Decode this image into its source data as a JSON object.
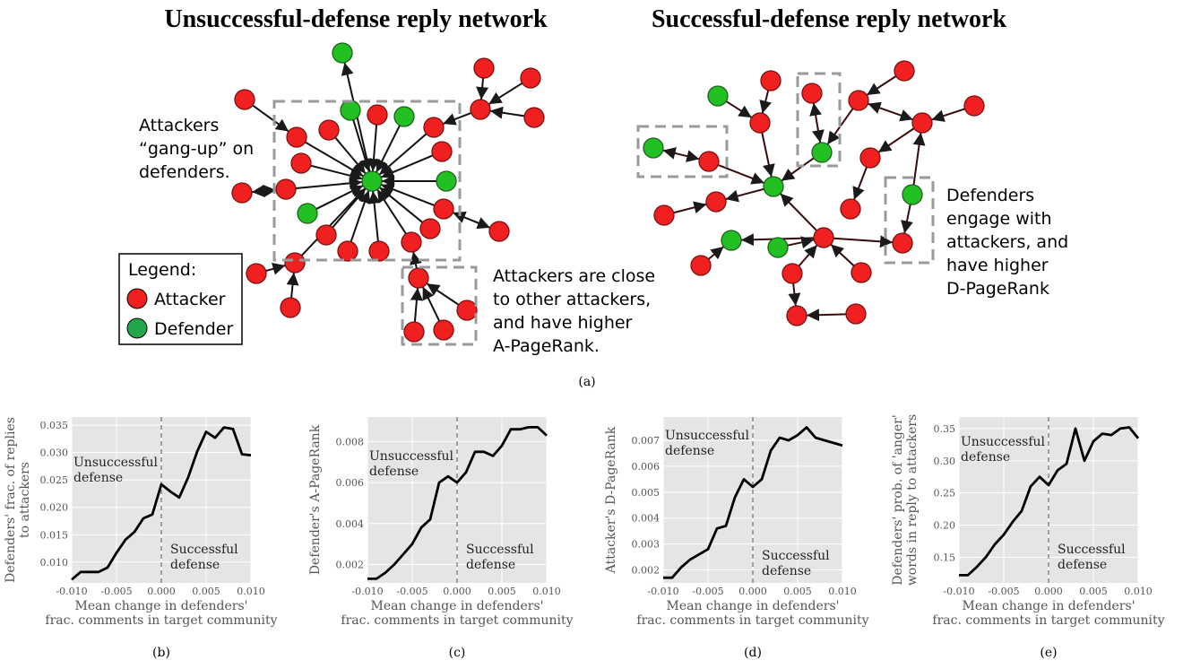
{
  "figure": {
    "left_title": "Unsuccessful-defense reply network",
    "right_title": "Successful-defense reply network",
    "note_gang": [
      "Attackers",
      "“gang-up” on",
      "defenders."
    ],
    "note_close": [
      "Attackers are close",
      "to other attackers,",
      "and have higher",
      "A-PageRank."
    ],
    "note_engage": [
      "Defenders",
      "engage with",
      "attackers, and",
      "have higher",
      "D-PageRank"
    ],
    "legend": {
      "title": "Legend:",
      "attacker": "Attacker",
      "defender": "Defender"
    },
    "colors": {
      "attacker": "#f02020",
      "defender": "#22c022",
      "edge": "#000000"
    },
    "caption_a": "(a)",
    "captions": [
      "(b)",
      "(c)",
      "(d)",
      "(e)"
    ]
  },
  "chart_data": [
    {
      "type": "line",
      "xlabel": [
        "Mean change in defenders'",
        "frac. comments in target community"
      ],
      "ylabel": [
        "Defenders' frac. of replies",
        "to attackers"
      ],
      "xlim": [
        -0.01,
        0.01
      ],
      "ylim": [
        0.0062,
        0.0365
      ],
      "xticks": [
        "-0.010",
        "-0.005",
        "0.000",
        "0.005",
        "0.010"
      ],
      "yticks": [
        "0.010",
        "0.015",
        "0.020",
        "0.025",
        "0.030",
        "0.035"
      ],
      "annotation_left": [
        "Unsuccessful",
        "defense"
      ],
      "annotation_right": [
        "Successful",
        "defense"
      ],
      "x": [
        -0.01,
        -0.009,
        -0.008,
        -0.007,
        -0.006,
        -0.005,
        -0.004,
        -0.003,
        -0.002,
        -0.001,
        0.0,
        0.001,
        0.002,
        0.003,
        0.004,
        0.005,
        0.006,
        0.007,
        0.008,
        0.009,
        0.01
      ],
      "values": [
        0.0068,
        0.0082,
        0.0082,
        0.0082,
        0.009,
        0.0117,
        0.0141,
        0.0155,
        0.018,
        0.0187,
        0.0242,
        0.0229,
        0.0218,
        0.0255,
        0.0302,
        0.0338,
        0.0327,
        0.0346,
        0.0343,
        0.0297,
        0.0295
      ]
    },
    {
      "type": "line",
      "xlabel": [
        "Mean change in defenders'",
        "frac. comments in target community"
      ],
      "ylabel": [
        "Defender's A-PageRank"
      ],
      "xlim": [
        -0.01,
        0.01
      ],
      "ylim": [
        0.0011,
        0.0092
      ],
      "xticks": [
        "-0.010",
        "-0.005",
        "0.000",
        "0.005",
        "0.010"
      ],
      "yticks": [
        "0.002",
        "0.004",
        "0.006",
        "0.008"
      ],
      "annotation_left": [
        "Unsuccessful",
        "defense"
      ],
      "annotation_right": [
        "Successful",
        "defense"
      ],
      "x": [
        -0.01,
        -0.009,
        -0.008,
        -0.007,
        -0.006,
        -0.005,
        -0.004,
        -0.003,
        -0.002,
        -0.001,
        0.0,
        0.001,
        0.002,
        0.003,
        0.004,
        0.005,
        0.006,
        0.007,
        0.008,
        0.009,
        0.01
      ],
      "values": [
        0.0013,
        0.0013,
        0.0016,
        0.002,
        0.0025,
        0.003,
        0.0038,
        0.0042,
        0.006,
        0.0063,
        0.006,
        0.0065,
        0.0075,
        0.0075,
        0.0073,
        0.0078,
        0.0086,
        0.0086,
        0.0087,
        0.0087,
        0.0083
      ]
    },
    {
      "type": "line",
      "xlabel": [
        "Mean change in defenders'",
        "frac. comments in target community"
      ],
      "ylabel": [
        "Attacker's D-PageRank"
      ],
      "xlim": [
        -0.01,
        0.01
      ],
      "ylim": [
        0.0015,
        0.0079
      ],
      "xticks": [
        "-0.010",
        "-0.005",
        "0.000",
        "0.005",
        "0.010"
      ],
      "yticks": [
        "0.002",
        "0.003",
        "0.004",
        "0.005",
        "0.006",
        "0.007"
      ],
      "annotation_left": [
        "Unsuccessful",
        "defense"
      ],
      "annotation_right": [
        "Successful",
        "defense"
      ],
      "x": [
        -0.01,
        -0.009,
        -0.008,
        -0.007,
        -0.006,
        -0.005,
        -0.004,
        -0.003,
        -0.002,
        -0.001,
        0.0,
        0.001,
        0.002,
        0.003,
        0.004,
        0.005,
        0.006,
        0.007,
        0.008,
        0.009,
        0.01
      ],
      "values": [
        0.0017,
        0.0017,
        0.0021,
        0.0024,
        0.0026,
        0.0028,
        0.0036,
        0.0037,
        0.0048,
        0.0055,
        0.0052,
        0.0055,
        0.0066,
        0.0071,
        0.007,
        0.0072,
        0.0075,
        0.0071,
        0.007,
        0.0069,
        0.0068
      ]
    },
    {
      "type": "line",
      "xlabel": [
        "Mean change in defenders'",
        "frac. comments in target community"
      ],
      "ylabel": [
        "Defenders' prob. of 'anger'",
        "words in reply to attackers"
      ],
      "xlim": [
        -0.01,
        0.01
      ],
      "ylim": [
        0.11,
        0.368
      ],
      "xticks": [
        "-0.010",
        "-0.005",
        "0.000",
        "0.005",
        "0.010"
      ],
      "yticks": [
        "0.15",
        "0.20",
        "0.25",
        "0.30",
        "0.35"
      ],
      "annotation_left": [
        "Unsuccessful",
        "defense"
      ],
      "annotation_right": [
        "Successful",
        "defense"
      ],
      "x": [
        -0.01,
        -0.009,
        -0.008,
        -0.007,
        -0.006,
        -0.005,
        -0.004,
        -0.003,
        -0.002,
        -0.001,
        0.0,
        0.001,
        0.002,
        0.003,
        0.004,
        0.005,
        0.006,
        0.007,
        0.008,
        0.009,
        0.01
      ],
      "values": [
        0.122,
        0.122,
        0.135,
        0.15,
        0.17,
        0.185,
        0.205,
        0.222,
        0.26,
        0.275,
        0.262,
        0.285,
        0.295,
        0.35,
        0.3,
        0.33,
        0.342,
        0.34,
        0.35,
        0.352,
        0.335
      ]
    }
  ]
}
